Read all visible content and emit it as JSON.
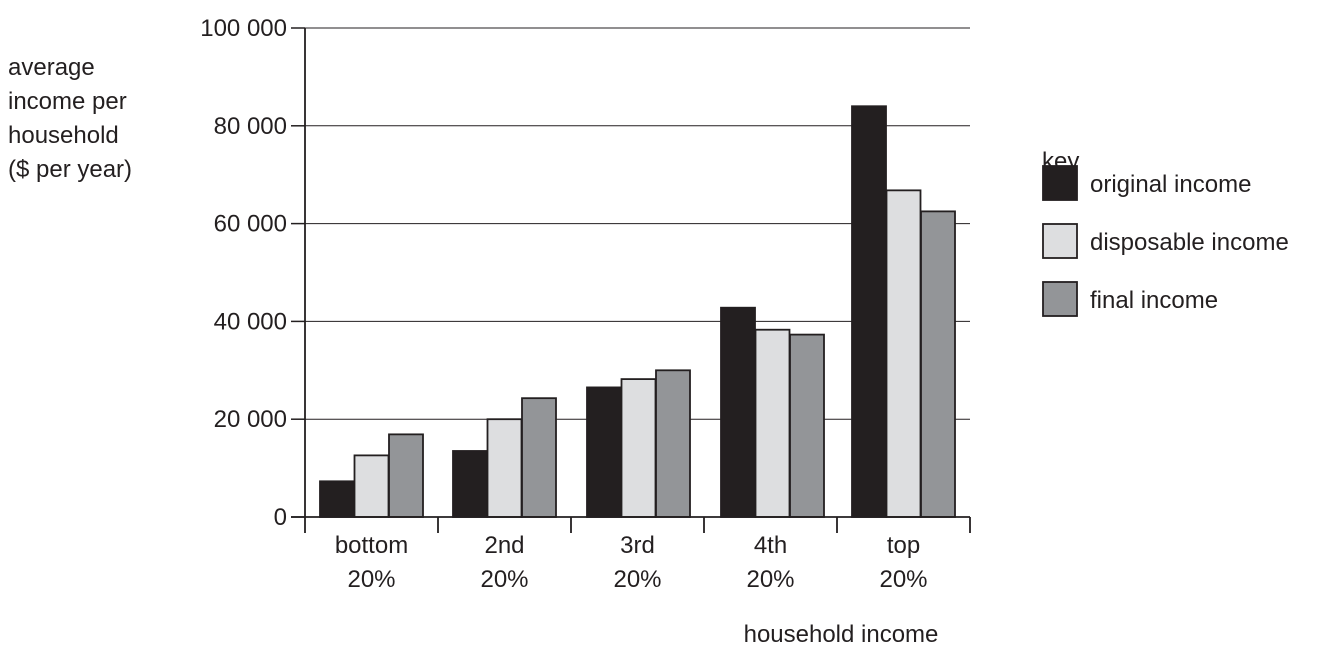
{
  "chart_data": {
    "type": "bar",
    "title": "",
    "ylabel": [
      "average",
      "income per",
      "household",
      "($ per year)"
    ],
    "xlabel": "household income",
    "categories": [
      [
        "bottom",
        "20%"
      ],
      [
        "2nd",
        "20%"
      ],
      [
        "3rd",
        "20%"
      ],
      [
        "4th",
        "20%"
      ],
      [
        "top",
        "20%"
      ]
    ],
    "y_ticks": [
      {
        "value": 0,
        "label": "0"
      },
      {
        "value": 20000,
        "label": "20 000"
      },
      {
        "value": 40000,
        "label": "40 000"
      },
      {
        "value": 60000,
        "label": "60 000"
      },
      {
        "value": 80000,
        "label": "80 000"
      },
      {
        "value": 100000,
        "label": "100 000"
      }
    ],
    "ylim": [
      0,
      100000
    ],
    "grid": true,
    "legend_title": "key",
    "legend_position": "right",
    "series": [
      {
        "name": "original income",
        "color": "#231f20",
        "values": [
          7300,
          13500,
          26500,
          42800,
          84000
        ]
      },
      {
        "name": "disposable income",
        "color": "#dddee0",
        "values": [
          12600,
          20000,
          28200,
          38300,
          66800
        ]
      },
      {
        "name": "final income",
        "color": "#939598",
        "values": [
          16900,
          24300,
          30000,
          37300,
          62500
        ]
      }
    ]
  }
}
